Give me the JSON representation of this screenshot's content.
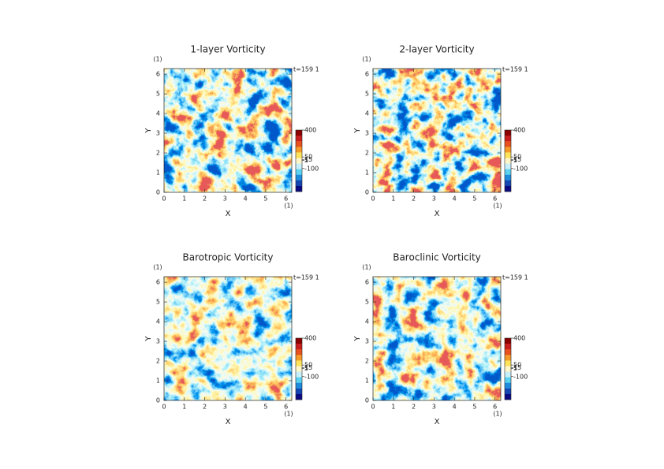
{
  "chart_data": [
    {
      "type": "heatmap",
      "title": "1-layer Vorticity",
      "xlabel": "X",
      "ylabel": "Y",
      "x_unit": "(1)",
      "y_unit": "(1)",
      "time_label": "t=159 1",
      "xlim": [
        0,
        6.283
      ],
      "ylim": [
        0,
        6.283
      ],
      "xticks": [
        0,
        1,
        2,
        3,
        4,
        5,
        6
      ],
      "yticks": [
        0,
        1,
        2,
        3,
        4,
        5,
        6
      ],
      "clim": [
        -400,
        400
      ],
      "cticks": [
        400,
        50,
        15,
        5,
        -100
      ],
      "colors": [
        "#8b0000",
        "#c81e1e",
        "#e8501e",
        "#f59a28",
        "#fde25a",
        "#fff6c8",
        "#c8f0fa",
        "#5ad2f0",
        "#1e8cdc",
        "#1446b4",
        "#0a0a82"
      ]
    },
    {
      "type": "heatmap",
      "title": "2-layer Vorticity",
      "xlabel": "X",
      "ylabel": "Y",
      "x_unit": "(1)",
      "y_unit": "(1)",
      "time_label": "t=159 1",
      "xlim": [
        0,
        6.283
      ],
      "ylim": [
        0,
        6.283
      ],
      "xticks": [
        0,
        1,
        2,
        3,
        4,
        5,
        6
      ],
      "yticks": [
        0,
        1,
        2,
        3,
        4,
        5,
        6
      ],
      "clim": [
        -400,
        400
      ],
      "cticks": [
        400,
        50,
        15,
        5,
        -100
      ],
      "colors": [
        "#8b0000",
        "#c81e1e",
        "#e8501e",
        "#f59a28",
        "#fde25a",
        "#fff6c8",
        "#c8f0fa",
        "#5ad2f0",
        "#1e8cdc",
        "#1446b4",
        "#0a0a82"
      ]
    },
    {
      "type": "heatmap",
      "title": "Barotropic Vorticity",
      "xlabel": "X",
      "ylabel": "Y",
      "x_unit": "(1)",
      "y_unit": "(1)",
      "time_label": "t=159 1",
      "xlim": [
        0,
        6.283
      ],
      "ylim": [
        0,
        6.283
      ],
      "xticks": [
        0,
        1,
        2,
        3,
        4,
        5,
        6
      ],
      "yticks": [
        0,
        1,
        2,
        3,
        4,
        5,
        6
      ],
      "clim": [
        -400,
        400
      ],
      "cticks": [
        400,
        50,
        15,
        5,
        -100
      ],
      "colors": [
        "#8b0000",
        "#c81e1e",
        "#e8501e",
        "#f59a28",
        "#fde25a",
        "#fff6c8",
        "#c8f0fa",
        "#5ad2f0",
        "#1e8cdc",
        "#1446b4",
        "#0a0a82"
      ]
    },
    {
      "type": "heatmap",
      "title": "Baroclinic Vorticity",
      "xlabel": "X",
      "ylabel": "Y",
      "x_unit": "(1)",
      "y_unit": "(1)",
      "time_label": "t=159 1",
      "xlim": [
        0,
        6.283
      ],
      "ylim": [
        0,
        6.283
      ],
      "xticks": [
        0,
        1,
        2,
        3,
        4,
        5,
        6
      ],
      "yticks": [
        0,
        1,
        2,
        3,
        4,
        5,
        6
      ],
      "clim": [
        -400,
        400
      ],
      "cticks": [
        400,
        50,
        15,
        5,
        -100
      ],
      "colors": [
        "#8b0000",
        "#c81e1e",
        "#e8501e",
        "#f59a28",
        "#fde25a",
        "#fff6c8",
        "#c8f0fa",
        "#5ad2f0",
        "#1e8cdc",
        "#1446b4",
        "#0a0a82"
      ]
    }
  ]
}
